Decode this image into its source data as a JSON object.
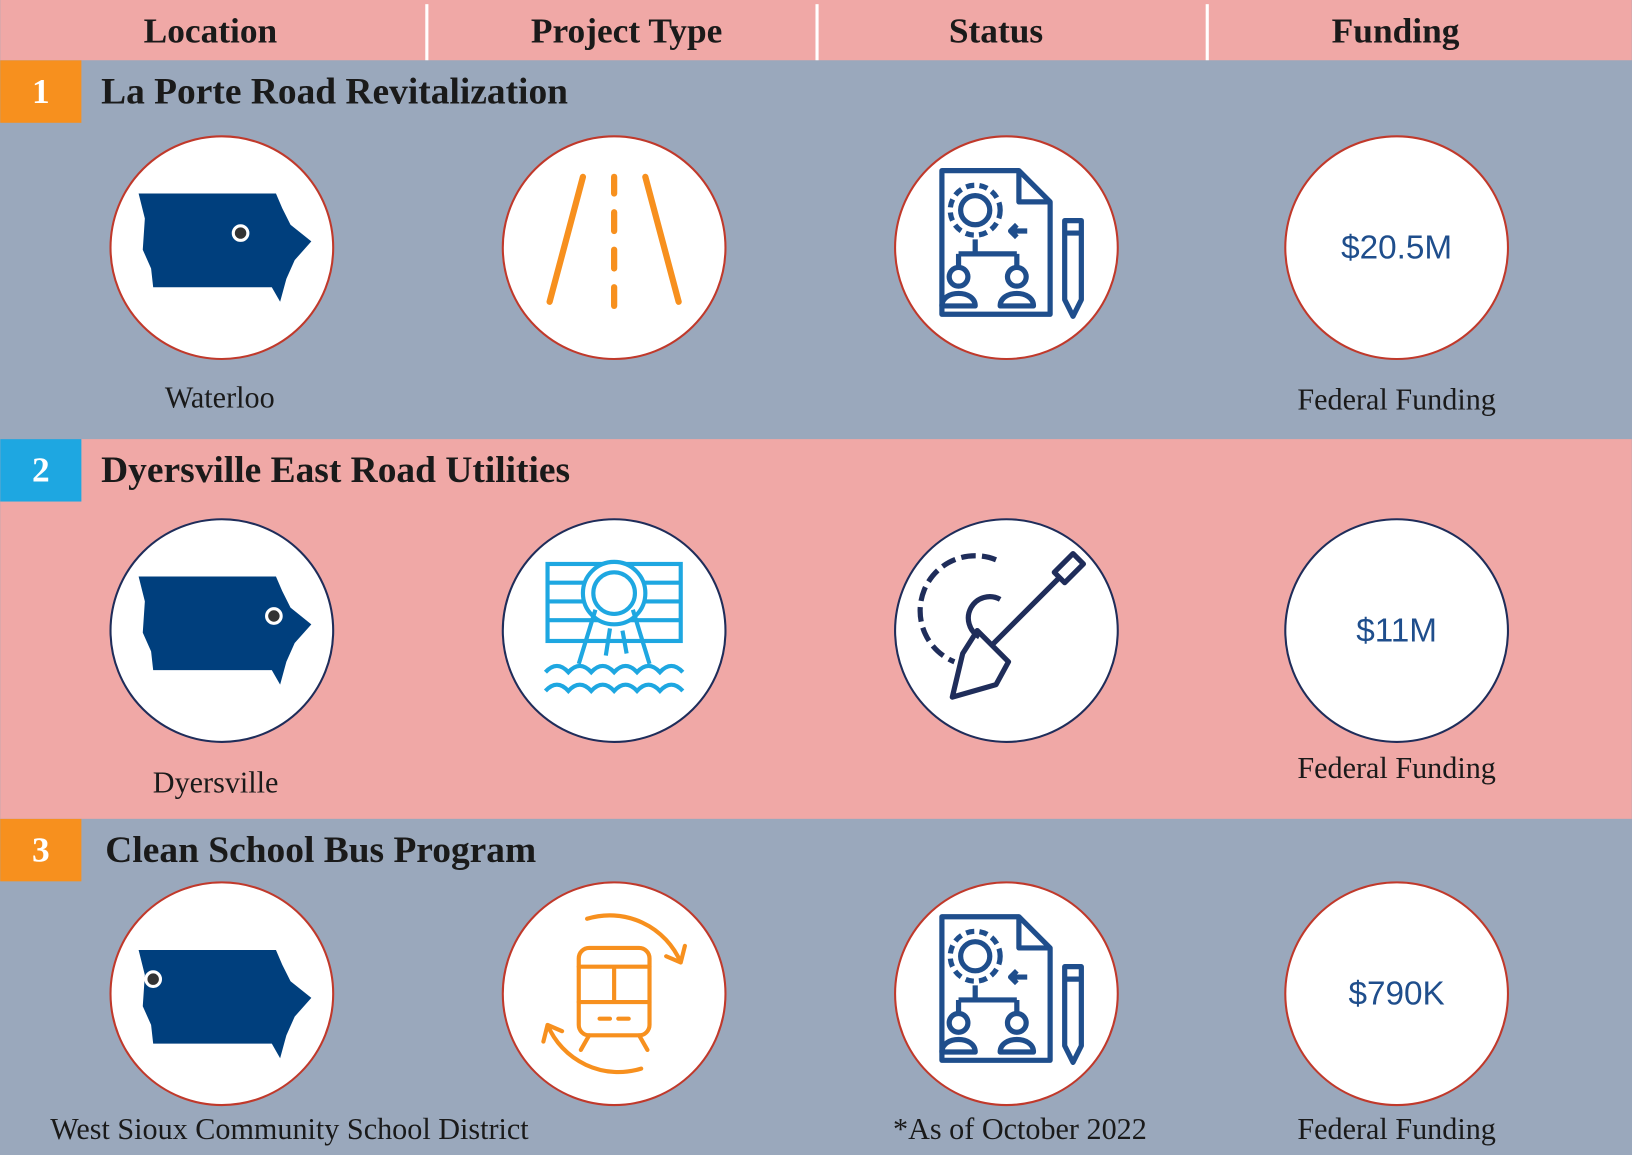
{
  "header": {
    "columns": [
      "Location",
      "Project Type",
      "Status",
      "Funding"
    ]
  },
  "projects": [
    {
      "number": "1",
      "title": "La Porte Road Revitalization",
      "location": "Waterloo",
      "funding": "$20.5M",
      "funding_label": "Federal Funding"
    },
    {
      "number": "2",
      "title": "Dyersville East Road Utilities",
      "location": "Dyersville",
      "funding": "$11M",
      "funding_label": "Federal Funding"
    },
    {
      "number": "3",
      "title": "Clean School Bus Program",
      "location": "West Sioux Community School District",
      "funding": "$790K",
      "funding_label": "Federal Funding",
      "note": "*As of October 2022"
    }
  ]
}
